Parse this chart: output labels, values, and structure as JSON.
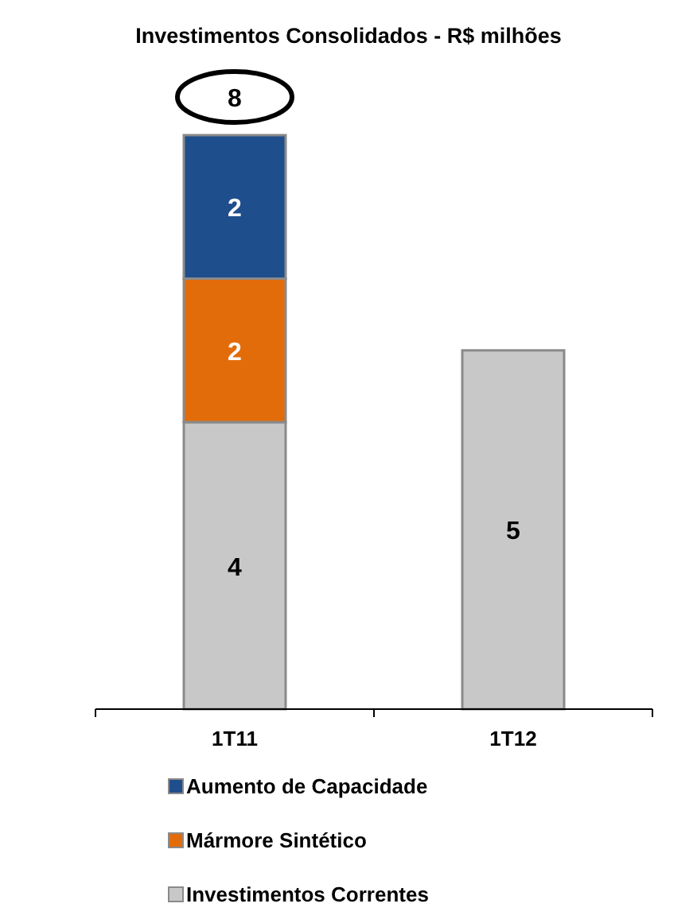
{
  "chart_data": {
    "type": "bar",
    "title": "Investimentos Consolidados - R$ milhões",
    "categories": [
      "1T11",
      "1T12"
    ],
    "stacked": true,
    "data_labels": true,
    "legend": "bottom",
    "series": [
      {
        "name": "Investimentos Correntes",
        "color": "#c8c8c8",
        "values": [
          4,
          5
        ]
      },
      {
        "name": "Mármore Sintético",
        "color": "#e36c0a",
        "values": [
          2,
          null
        ]
      },
      {
        "name": "Aumento de Capacidade",
        "color": "#1f4e8c",
        "values": [
          2,
          null
        ]
      }
    ],
    "totals": [
      "8",
      null
    ]
  }
}
